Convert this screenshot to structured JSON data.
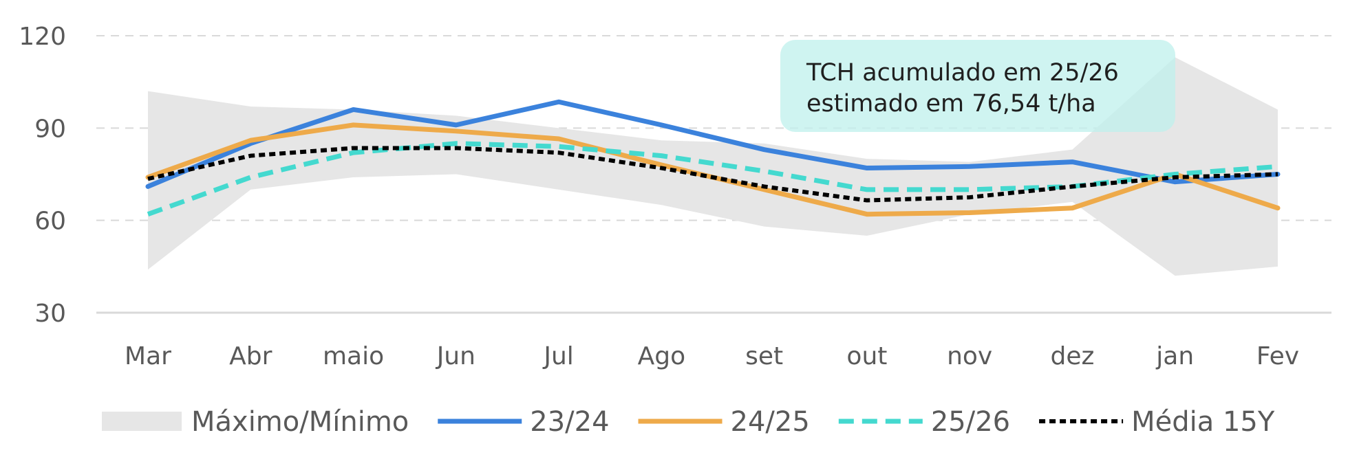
{
  "colors": {
    "band": "#e6e6e6",
    "series_23_24": "#3b82dc",
    "series_24_25": "#eeaa4a",
    "series_25_26": "#44d9cf",
    "media": "#000000",
    "grid": "#d9d9d9",
    "axis": "#d9d9d9",
    "text": "#595959",
    "annotation_bg": "#bff0ec"
  },
  "annotation": {
    "line1": "TCH acumulado em 25/26",
    "line2": "estimado em 76,54 t/ha"
  },
  "chart_data": {
    "type": "line",
    "categories": [
      "Mar",
      "Abr",
      "maio",
      "Jun",
      "Jul",
      "Ago",
      "set",
      "out",
      "nov",
      "dez",
      "jan",
      "Fev"
    ],
    "ylim": [
      30,
      120
    ],
    "yticks": [
      "30",
      "60",
      "90",
      "120"
    ],
    "grid": true,
    "legend_position": "bottom",
    "band": {
      "name": "Máximo/Mínimo",
      "max": [
        102,
        97,
        96,
        94,
        90,
        86,
        85,
        80,
        79,
        83,
        113,
        96
      ],
      "min": [
        44,
        70,
        74,
        75,
        70,
        65,
        58,
        55,
        62,
        66,
        42,
        45
      ]
    },
    "series": [
      {
        "name": "23/24",
        "style": "solid",
        "values": [
          71,
          85,
          96,
          91,
          98.5,
          91,
          83,
          77,
          77.5,
          79,
          72.5,
          75
        ]
      },
      {
        "name": "24/25",
        "style": "solid",
        "values": [
          74,
          86,
          91,
          89,
          86.5,
          78,
          70,
          62,
          62.5,
          64,
          75,
          64
        ]
      },
      {
        "name": "25/26",
        "style": "dashed",
        "values": [
          62,
          74,
          82,
          85,
          84,
          81,
          76,
          70,
          70,
          71,
          75,
          77.5
        ]
      },
      {
        "name": "Média 15Y",
        "style": "dotted",
        "values": [
          73.5,
          81,
          83.5,
          83.5,
          82,
          77,
          71,
          66.5,
          67.5,
          71,
          74,
          75
        ]
      }
    ]
  }
}
